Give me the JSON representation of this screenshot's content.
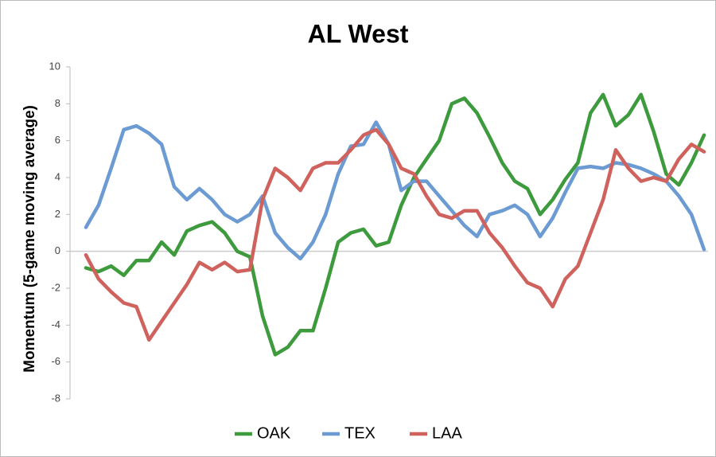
{
  "chart_data": {
    "type": "line",
    "title": "AL West",
    "y_label": "Momentum (5-game moving average)",
    "ylim": [
      -8,
      10
    ],
    "yticks": [
      -8,
      -6,
      -4,
      -2,
      0,
      2,
      4,
      6,
      8,
      10
    ],
    "legend": "bottom",
    "series": [
      {
        "name": "OAK",
        "color": "#3d9a3d",
        "values": [
          -0.9,
          -1.1,
          -0.8,
          -1.3,
          -0.5,
          -0.5,
          0.5,
          -0.2,
          1.1,
          1.4,
          1.6,
          1.0,
          0.0,
          -0.3,
          -3.5,
          -5.6,
          -5.2,
          -4.3,
          -4.3,
          -2.0,
          0.5,
          1.0,
          1.2,
          0.3,
          0.5,
          2.5,
          4.0,
          5.0,
          6.0,
          8.0,
          8.3,
          7.5,
          6.2,
          4.8,
          3.8,
          3.4,
          2.0,
          2.8,
          3.9,
          4.8,
          7.5,
          8.5,
          6.8,
          7.4,
          8.5,
          6.5,
          4.2,
          3.6,
          4.8,
          6.3
        ]
      },
      {
        "name": "TEX",
        "color": "#6b9bd2",
        "values": [
          1.3,
          2.5,
          4.5,
          6.6,
          6.8,
          6.4,
          5.8,
          3.5,
          2.8,
          3.4,
          2.8,
          2.0,
          1.6,
          2.0,
          3.0,
          1.0,
          0.2,
          -0.4,
          0.5,
          2.0,
          4.2,
          5.7,
          5.8,
          7.0,
          5.8,
          3.3,
          3.8,
          3.8,
          3.0,
          2.2,
          1.4,
          0.8,
          2.0,
          2.2,
          2.5,
          2.0,
          0.8,
          1.8,
          3.2,
          4.5,
          4.6,
          4.5,
          4.8,
          4.7,
          4.5,
          4.2,
          3.8,
          3.0,
          2.0,
          0.1
        ]
      },
      {
        "name": "LAA",
        "color": "#d0625e",
        "values": [
          -0.2,
          -1.5,
          -2.2,
          -2.8,
          -3.0,
          -4.8,
          -3.8,
          -2.8,
          -1.8,
          -0.6,
          -1.0,
          -0.6,
          -1.1,
          -1.0,
          2.8,
          4.5,
          4.0,
          3.3,
          4.5,
          4.8,
          4.8,
          5.5,
          6.3,
          6.6,
          5.8,
          4.5,
          4.2,
          3.0,
          2.0,
          1.8,
          2.2,
          2.2,
          1.0,
          0.2,
          -0.8,
          -1.7,
          -2.0,
          -3.0,
          -1.5,
          -0.8,
          1.0,
          2.8,
          5.5,
          4.5,
          3.8,
          4.0,
          3.8,
          5.0,
          5.8,
          5.4
        ]
      }
    ]
  }
}
